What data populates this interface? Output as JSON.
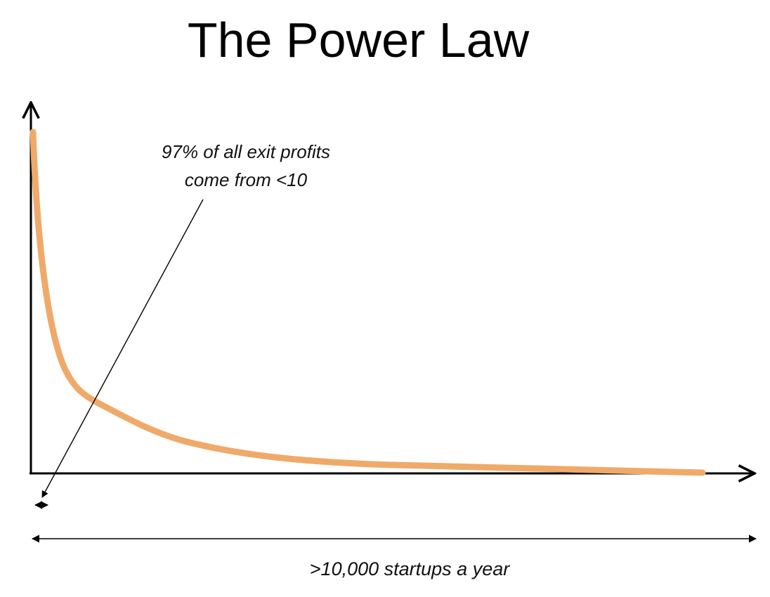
{
  "title": "The Power Law",
  "annotation": {
    "line1": "97% of all exit profits",
    "line2": "come from <10"
  },
  "footer_label": ">10,000 startups a year",
  "colors": {
    "curve": "#efaa6a",
    "axis": "#000000",
    "text": "#111111"
  },
  "chart_data": {
    "type": "line",
    "title": "The Power Law",
    "xlabel": ">10,000 startups a year",
    "ylabel": "",
    "curve_shape": "power-law decay",
    "grid": false,
    "legend": "none",
    "series": [
      {
        "values_description": "qualitative curve, no numeric labels",
        "x": [
          0,
          0.02,
          0.05,
          0.08,
          0.12,
          0.18,
          0.27,
          0.38,
          0.52,
          0.7,
          1.0
        ],
        "y": [
          1.0,
          0.6,
          0.34,
          0.24,
          0.17,
          0.11,
          0.07,
          0.045,
          0.028,
          0.016,
          0.0
        ]
      }
    ],
    "annotations": [
      "97% of all exit profits come from <10"
    ]
  }
}
